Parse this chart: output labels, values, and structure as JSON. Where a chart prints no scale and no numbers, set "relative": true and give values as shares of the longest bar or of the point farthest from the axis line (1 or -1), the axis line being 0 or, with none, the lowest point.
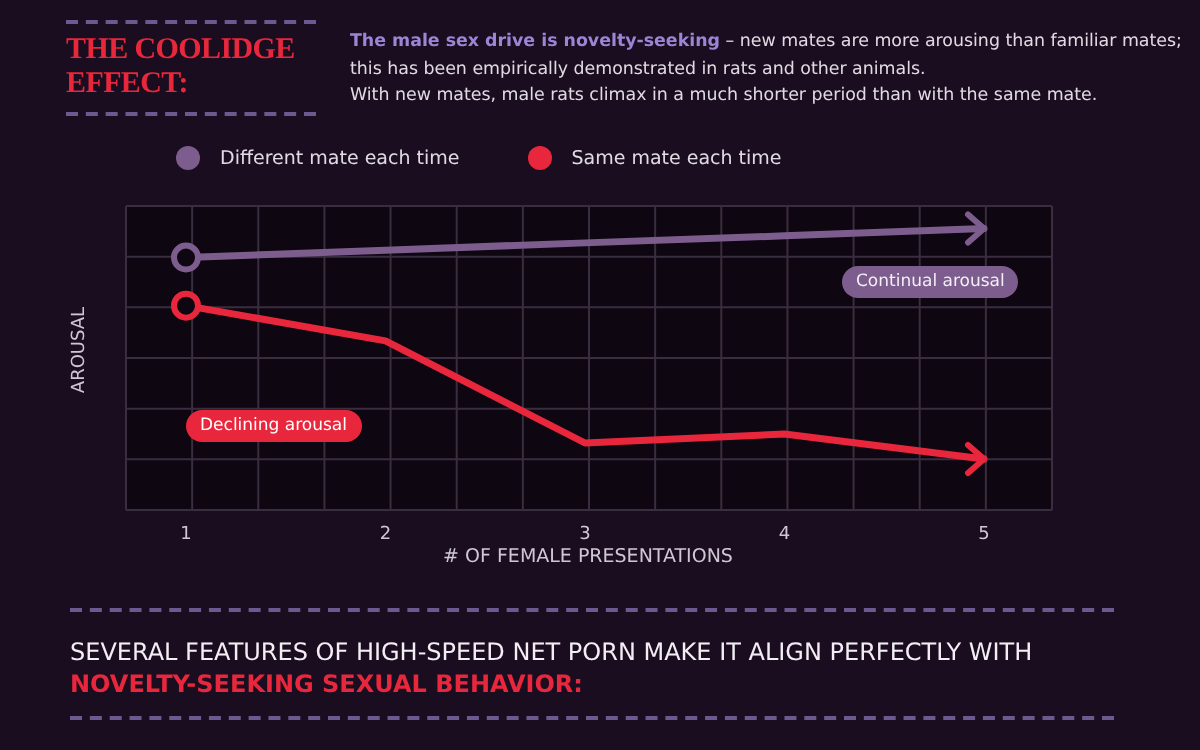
{
  "chart_data": {
    "type": "line",
    "title": "THE COOLIDGE EFFECT:",
    "subtitle": "The male sex drive is novelty-seeking – new mates are more arousing than familiar mates;\nthis has been empirically demonstrated in rats and other animals.\nWith new mates, male rats climax in a much shorter period than with the same mate.",
    "xlabel": "# OF FEMALE PRESENTATIONS",
    "ylabel": "AROUSAL",
    "relative": true,
    "categories": [
      "1",
      "2",
      "3",
      "4",
      "5"
    ],
    "series": [
      {
        "name": "Different mate each time",
        "color": "#7d5d8e",
        "values": [
          0.897,
          0.923,
          0.949,
          0.974,
          1.0
        ]
      },
      {
        "name": "Same mate each time",
        "color": "#e8273d",
        "values": [
          0.726,
          0.601,
          0.238,
          0.27,
          0.181
        ]
      }
    ],
    "annotations": [
      "Continual arousal",
      "Declining arousal",
      "SEVERAL FEATURES OF HIGH-SPEED NET PORN MAKE IT ALIGN PERFECTLY WITH",
      "NOVELTY-SEEKING SEXUAL BEHAVIOR:"
    ],
    "grid": true,
    "legend": "top left",
    "line_style": "solid"
  }
}
